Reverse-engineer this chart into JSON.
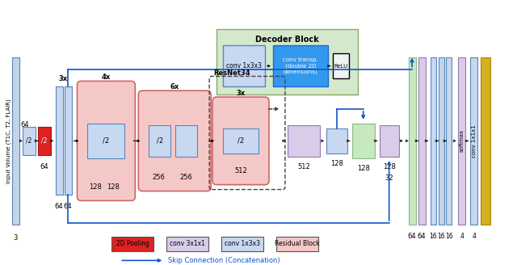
{
  "fig_w": 6.4,
  "fig_h": 3.28,
  "bg_color": "#ffffff",
  "colors": {
    "light_blue": "#c8d8f0",
    "blue_fill": "#3399ee",
    "pink": "#f5c8c8",
    "red": "#dd2222",
    "lavender": "#d8cce8",
    "green": "#c8e8c0",
    "white_box": "#f2f2f2",
    "input_blue": "#c4d4e8",
    "decoder_bg": "#d4e8cc",
    "arrow_blue": "#1155cc",
    "yellow": "#d4b020",
    "pink_edge": "#cc6666",
    "blue_edge": "#5588bb",
    "green_edge": "#88bb88",
    "lav_edge": "#9977bb"
  },
  "title": "Decoder Block",
  "ylabel": "Input Volume (T1C, T2, FLAIR)",
  "resnet_label": "ResNet34",
  "softmax_label": "softmax",
  "conv1x1_label": "conv 1x1x1",
  "skip_label": "Skip Connection (Concatenation)",
  "legend_items": [
    {
      "color": "#dd2222",
      "label": "2D Pooling"
    },
    {
      "color": "#d8cce8",
      "label": "conv 3x1x1"
    },
    {
      "color": "#c8d8f0",
      "label": "conv 1x3x3"
    },
    {
      "color": "#f5c8c8",
      "label": "Residual Block"
    }
  ]
}
